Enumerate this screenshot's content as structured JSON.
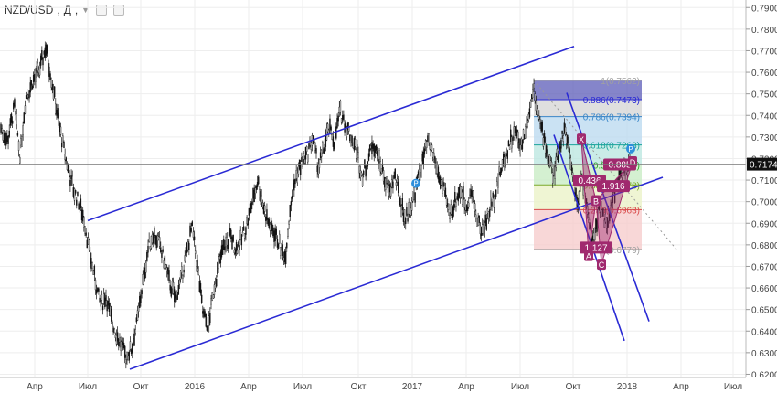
{
  "header": {
    "symbol": "NZD/USD",
    "interval": "Д"
  },
  "chart_data": {
    "type": "candlestick",
    "ylim": [
      0.6185,
      0.7935
    ],
    "y_ticks": [
      0.62,
      0.63,
      0.64,
      0.65,
      0.66,
      0.67,
      0.68,
      0.69,
      0.7,
      0.71,
      0.72,
      0.73,
      0.74,
      0.75,
      0.76,
      0.77,
      0.78,
      0.79
    ],
    "y_tick_labels": [
      "0.6200",
      "0.6300",
      "0.6400",
      "0.6500",
      "0.6600",
      "0.6700",
      "0.6800",
      "0.6900",
      "0.7000",
      "0.7100",
      "0.7200",
      "0.7300",
      "0.7400",
      "0.7500",
      "0.7600",
      "0.7700",
      "0.7800",
      "0.7900"
    ],
    "x_labels": [
      "Апр",
      "Июл",
      "Окт",
      "2016",
      "Апр",
      "Июл",
      "Окт",
      "2017",
      "Апр",
      "Июл",
      "Окт",
      "2018",
      "Апр",
      "Июл"
    ],
    "last_price": 0.7174,
    "last_price_label": "0.7174",
    "price_path": [
      [
        0,
        0.735
      ],
      [
        8,
        0.728
      ],
      [
        16,
        0.744
      ],
      [
        22,
        0.721
      ],
      [
        28,
        0.748
      ],
      [
        36,
        0.756
      ],
      [
        44,
        0.762
      ],
      [
        50,
        0.772
      ],
      [
        56,
        0.758
      ],
      [
        62,
        0.742
      ],
      [
        68,
        0.728
      ],
      [
        74,
        0.716
      ],
      [
        80,
        0.706
      ],
      [
        86,
        0.7
      ],
      [
        92,
        0.692
      ],
      [
        98,
        0.676
      ],
      [
        104,
        0.664
      ],
      [
        110,
        0.652
      ],
      [
        116,
        0.656
      ],
      [
        120,
        0.648
      ],
      [
        126,
        0.64
      ],
      [
        132,
        0.634
      ],
      [
        138,
        0.628
      ],
      [
        144,
        0.632
      ],
      [
        150,
        0.644
      ],
      [
        156,
        0.662
      ],
      [
        162,
        0.678
      ],
      [
        168,
        0.686
      ],
      [
        174,
        0.68
      ],
      [
        180,
        0.672
      ],
      [
        186,
        0.662
      ],
      [
        192,
        0.655
      ],
      [
        198,
        0.664
      ],
      [
        204,
        0.676
      ],
      [
        210,
        0.688
      ],
      [
        216,
        0.67
      ],
      [
        222,
        0.648
      ],
      [
        228,
        0.642
      ],
      [
        234,
        0.66
      ],
      [
        240,
        0.672
      ],
      [
        246,
        0.68
      ],
      [
        252,
        0.684
      ],
      [
        258,
        0.678
      ],
      [
        264,
        0.682
      ],
      [
        270,
        0.69
      ],
      [
        276,
        0.7
      ],
      [
        282,
        0.71
      ],
      [
        288,
        0.698
      ],
      [
        294,
        0.69
      ],
      [
        300,
        0.686
      ],
      [
        306,
        0.68
      ],
      [
        312,
        0.674
      ],
      [
        318,
        0.7
      ],
      [
        324,
        0.712
      ],
      [
        330,
        0.718
      ],
      [
        336,
        0.722
      ],
      [
        342,
        0.73
      ],
      [
        348,
        0.716
      ],
      [
        354,
        0.724
      ],
      [
        360,
        0.734
      ],
      [
        366,
        0.728
      ],
      [
        372,
        0.742
      ],
      [
        378,
        0.736
      ],
      [
        384,
        0.73
      ],
      [
        390,
        0.724
      ],
      [
        396,
        0.712
      ],
      [
        402,
        0.718
      ],
      [
        408,
        0.728
      ],
      [
        414,
        0.72
      ],
      [
        420,
        0.712
      ],
      [
        426,
        0.704
      ],
      [
        432,
        0.712
      ],
      [
        438,
        0.7
      ],
      [
        444,
        0.692
      ],
      [
        450,
        0.698
      ],
      [
        456,
        0.708
      ],
      [
        462,
        0.718
      ],
      [
        468,
        0.728
      ],
      [
        474,
        0.722
      ],
      [
        480,
        0.712
      ],
      [
        486,
        0.704
      ],
      [
        492,
        0.694
      ],
      [
        498,
        0.7
      ],
      [
        504,
        0.706
      ],
      [
        510,
        0.698
      ],
      [
        516,
        0.704
      ],
      [
        522,
        0.692
      ],
      [
        528,
        0.686
      ],
      [
        534,
        0.694
      ],
      [
        540,
        0.702
      ],
      [
        546,
        0.712
      ],
      [
        552,
        0.72
      ],
      [
        558,
        0.728
      ],
      [
        564,
        0.732
      ],
      [
        570,
        0.726
      ],
      [
        576,
        0.736
      ],
      [
        580,
        0.744
      ],
      [
        584,
        0.754
      ],
      [
        588,
        0.742
      ],
      [
        592,
        0.734
      ],
      [
        596,
        0.728
      ],
      [
        600,
        0.72
      ],
      [
        606,
        0.712
      ],
      [
        612,
        0.726
      ],
      [
        618,
        0.734
      ],
      [
        624,
        0.72
      ],
      [
        628,
        0.708
      ],
      [
        632,
        0.698
      ],
      [
        636,
        0.712
      ],
      [
        640,
        0.704
      ],
      [
        644,
        0.69
      ],
      [
        648,
        0.682
      ],
      [
        652,
        0.688
      ],
      [
        656,
        0.7
      ],
      [
        660,
        0.694
      ],
      [
        664,
        0.688
      ],
      [
        668,
        0.696
      ],
      [
        672,
        0.704
      ],
      [
        676,
        0.71
      ],
      [
        682,
        0.714
      ],
      [
        690,
        0.7174
      ]
    ],
    "channel_lines": [
      {
        "color": "#2a2ad4",
        "points": [
          [
            96,
            0.6912
          ],
          [
            628,
            0.772
          ]
        ]
      },
      {
        "color": "#2a2ad4",
        "points": [
          [
            142,
            0.6223
          ],
          [
            725,
            0.7113
          ]
        ]
      },
      {
        "color": "#2a2ad4",
        "points": [
          [
            620,
            0.7505
          ],
          [
            710,
            0.6445
          ]
        ]
      },
      {
        "color": "#2a2ad4",
        "points": [
          [
            606,
            0.731
          ],
          [
            683,
            0.6355
          ]
        ]
      }
    ],
    "fibonacci": {
      "x_start": 584,
      "x_end": 702,
      "levels": [
        {
          "label": "1(0.7562)",
          "price": 0.7562,
          "color": "#a1a1a1",
          "fill": "#5c5cb8"
        },
        {
          "label": "0.886(0.7473)",
          "price": 0.7473,
          "color": "#2a2ad4",
          "fill": "#d4d4d4"
        },
        {
          "label": "0.786(0.7394)",
          "price": 0.7394,
          "color": "#3a86c8",
          "fill": "#b8d8ef"
        },
        {
          "label": "0.618(0.7263)",
          "price": 0.7263,
          "color": "#1aa39a",
          "fill": "#b8e6df"
        },
        {
          "label": "0.5(0.7170)",
          "price": 0.717,
          "color": "#25a325",
          "fill": "#c6ebc2"
        },
        {
          "label": "0.382(0.7078)",
          "price": 0.7078,
          "color": "#7aaa2a",
          "fill": "#e9f2c4"
        },
        {
          "label": "0.236(0.6963)",
          "price": 0.6963,
          "color": "#d94a4a",
          "fill": "#f6c9c9"
        },
        {
          "label": "0(0.6779)",
          "price": 0.6779,
          "color": "#a1a1a1",
          "fill": null
        }
      ]
    },
    "harmonic_pattern": {
      "fill_color": "#a0296e",
      "points": [
        {
          "label": "X",
          "x": 636,
          "price": 0.729
        },
        {
          "label": "A",
          "x": 644,
          "price": 0.675
        },
        {
          "label": "B",
          "x": 652,
          "price": 0.7005
        },
        {
          "label": "C",
          "x": 658,
          "price": 0.671
        },
        {
          "label": "D",
          "x": 692,
          "price": 0.7185
        }
      ],
      "ratio_labels": [
        {
          "text": "0.885",
          "x": 678,
          "price": 0.717
        },
        {
          "text": "0.436",
          "x": 645,
          "price": 0.7095
        },
        {
          "text": "1.916",
          "x": 671,
          "price": 0.707
        },
        {
          "text": "1.127",
          "x": 652,
          "price": 0.6785
        }
      ]
    },
    "markers": [
      {
        "label": "P",
        "x": 455,
        "price": 0.7085
      },
      {
        "label": "P",
        "x": 690,
        "price": 0.7245
      }
    ]
  }
}
